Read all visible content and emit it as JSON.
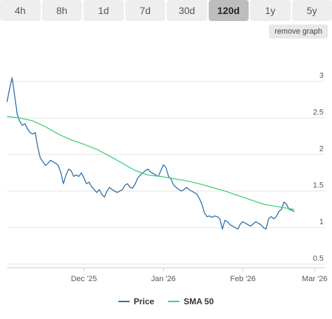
{
  "tabs": [
    {
      "label": "4h",
      "active": false
    },
    {
      "label": "8h",
      "active": false
    },
    {
      "label": "1d",
      "active": false
    },
    {
      "label": "7d",
      "active": false
    },
    {
      "label": "30d",
      "active": false
    },
    {
      "label": "120d",
      "active": true
    },
    {
      "label": "1y",
      "active": false
    },
    {
      "label": "5y",
      "active": false
    }
  ],
  "remove_graph_label": "remove graph",
  "colors": {
    "price": "#2b6ea6",
    "sma": "#3ecf7a",
    "grid": "#e6e6e6",
    "axis_text": "#555555"
  },
  "chart_data": {
    "type": "line",
    "x_axis": {
      "ticks": [
        {
          "label": "Dec '25",
          "day": 30
        },
        {
          "label": "Jan '26",
          "day": 61
        },
        {
          "label": "Feb '26",
          "day": 92
        },
        {
          "label": "Mar '26",
          "day": 120
        }
      ],
      "range": [
        0,
        124
      ]
    },
    "y_axis": {
      "ticks": [
        {
          "label": "3",
          "value": 3
        },
        {
          "label": "2.5",
          "value": 2.5
        },
        {
          "label": "2",
          "value": 2
        },
        {
          "label": "1.5",
          "value": 1.5
        },
        {
          "label": "1",
          "value": 1
        },
        {
          "label": "0.5",
          "value": 0.5
        }
      ],
      "range": [
        0.45,
        3.5
      ]
    },
    "series": [
      {
        "name": "Price",
        "points": [
          [
            0,
            2.72
          ],
          [
            1,
            2.9
          ],
          [
            2,
            3.05
          ],
          [
            3,
            2.8
          ],
          [
            4,
            2.55
          ],
          [
            5,
            2.45
          ],
          [
            6,
            2.4
          ],
          [
            7,
            2.42
          ],
          [
            8,
            2.35
          ],
          [
            9,
            2.3
          ],
          [
            10,
            2.28
          ],
          [
            11,
            2.3
          ],
          [
            12,
            2.1
          ],
          [
            13,
            1.95
          ],
          [
            14,
            1.9
          ],
          [
            15,
            1.85
          ],
          [
            16,
            1.88
          ],
          [
            17,
            1.92
          ],
          [
            18,
            1.9
          ],
          [
            19,
            1.88
          ],
          [
            20,
            1.85
          ],
          [
            21,
            1.75
          ],
          [
            22,
            1.6
          ],
          [
            23,
            1.72
          ],
          [
            24,
            1.8
          ],
          [
            25,
            1.78
          ],
          [
            26,
            1.7
          ],
          [
            27,
            1.72
          ],
          [
            28,
            1.7
          ],
          [
            29,
            1.75
          ],
          [
            30,
            1.68
          ],
          [
            31,
            1.6
          ],
          [
            32,
            1.62
          ],
          [
            33,
            1.56
          ],
          [
            34,
            1.52
          ],
          [
            35,
            1.48
          ],
          [
            36,
            1.52
          ],
          [
            37,
            1.45
          ],
          [
            38,
            1.42
          ],
          [
            39,
            1.5
          ],
          [
            40,
            1.55
          ],
          [
            41,
            1.52
          ],
          [
            42,
            1.5
          ],
          [
            43,
            1.48
          ],
          [
            44,
            1.5
          ],
          [
            45,
            1.52
          ],
          [
            46,
            1.58
          ],
          [
            47,
            1.6
          ],
          [
            48,
            1.55
          ],
          [
            49,
            1.54
          ],
          [
            50,
            1.6
          ],
          [
            51,
            1.68
          ],
          [
            52,
            1.72
          ],
          [
            53,
            1.75
          ],
          [
            54,
            1.78
          ],
          [
            55,
            1.8
          ],
          [
            56,
            1.76
          ],
          [
            57,
            1.74
          ],
          [
            58,
            1.72
          ],
          [
            59,
            1.7
          ],
          [
            60,
            1.78
          ],
          [
            61,
            1.86
          ],
          [
            62,
            1.82
          ],
          [
            63,
            1.7
          ],
          [
            64,
            1.66
          ],
          [
            65,
            1.58
          ],
          [
            66,
            1.55
          ],
          [
            67,
            1.52
          ],
          [
            68,
            1.5
          ],
          [
            69,
            1.52
          ],
          [
            70,
            1.55
          ],
          [
            71,
            1.52
          ],
          [
            72,
            1.5
          ],
          [
            73,
            1.48
          ],
          [
            74,
            1.46
          ],
          [
            75,
            1.4
          ],
          [
            76,
            1.32
          ],
          [
            77,
            1.2
          ],
          [
            78,
            1.15
          ],
          [
            79,
            1.16
          ],
          [
            80,
            1.14
          ],
          [
            81,
            1.16
          ],
          [
            82,
            1.15
          ],
          [
            83,
            1.12
          ],
          [
            84,
            0.98
          ],
          [
            85,
            1.1
          ],
          [
            86,
            1.08
          ],
          [
            87,
            1.04
          ],
          [
            88,
            1.02
          ],
          [
            89,
            1
          ],
          [
            90,
            0.98
          ],
          [
            91,
            1.05
          ],
          [
            92,
            1.08
          ],
          [
            93,
            1.06
          ],
          [
            94,
            1.04
          ],
          [
            95,
            1.02
          ],
          [
            96,
            1.05
          ],
          [
            97,
            1.08
          ],
          [
            98,
            1.06
          ],
          [
            99,
            1.04
          ],
          [
            100,
            1
          ],
          [
            101,
            0.98
          ],
          [
            102,
            1.12
          ],
          [
            103,
            1.15
          ],
          [
            104,
            1.12
          ],
          [
            105,
            1.15
          ],
          [
            106,
            1.22
          ],
          [
            107,
            1.25
          ],
          [
            108,
            1.35
          ],
          [
            109,
            1.32
          ],
          [
            110,
            1.25
          ],
          [
            111,
            1.24
          ],
          [
            112,
            1.22
          ]
        ]
      },
      {
        "name": "SMA 50",
        "points": [
          [
            0,
            2.52
          ],
          [
            5,
            2.5
          ],
          [
            10,
            2.46
          ],
          [
            15,
            2.38
          ],
          [
            20,
            2.28
          ],
          [
            25,
            2.2
          ],
          [
            30,
            2.14
          ],
          [
            35,
            2.07
          ],
          [
            40,
            1.98
          ],
          [
            45,
            1.88
          ],
          [
            50,
            1.78
          ],
          [
            55,
            1.72
          ],
          [
            60,
            1.7
          ],
          [
            65,
            1.67
          ],
          [
            70,
            1.64
          ],
          [
            75,
            1.6
          ],
          [
            80,
            1.55
          ],
          [
            85,
            1.5
          ],
          [
            90,
            1.44
          ],
          [
            95,
            1.38
          ],
          [
            100,
            1.32
          ],
          [
            105,
            1.29
          ],
          [
            110,
            1.26
          ],
          [
            112,
            1.25
          ]
        ]
      }
    ],
    "grid": true,
    "legend_position": "bottom"
  }
}
